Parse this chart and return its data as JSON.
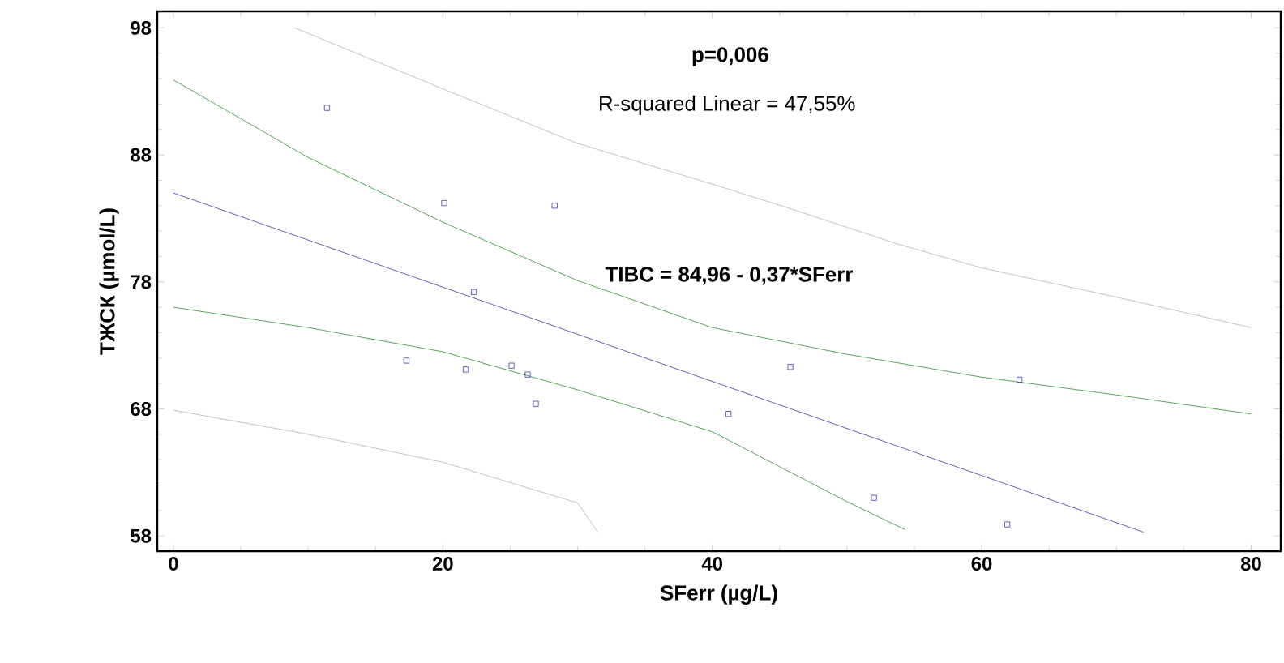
{
  "chart_data": {
    "type": "scatter",
    "xlabel": "SFerr (µg/L)",
    "ylabel": "ТЖСК (µmol/L)",
    "xlim": [
      -1.2,
      82.2
    ],
    "ylim": [
      56.8,
      99.3
    ],
    "xticks": [
      0,
      20,
      40,
      60,
      80
    ],
    "yticks": [
      58,
      68,
      78,
      88,
      98
    ],
    "annotations": [
      "p=0,006",
      "R-squared Linear = 47,55%",
      "TIBC = 84,96 - 0,37*SFerr"
    ],
    "series": [
      {
        "marker": "square",
        "color": "#3a3ab0",
        "x": [
          11.4,
          20.1,
          28.3,
          22.3,
          17.3,
          21.7,
          25.1,
          26.3,
          26.9,
          41.2,
          45.8,
          52.0,
          61.9,
          62.8
        ],
        "values": [
          91.7,
          84.2,
          84.0,
          77.2,
          71.8,
          71.1,
          71.4,
          70.7,
          68.4,
          67.6,
          71.3,
          61.0,
          58.9,
          70.3
        ]
      },
      {
        "type": "line",
        "marker": "none",
        "color": "#3a3ab0",
        "x": [
          0,
          72
        ],
        "values": [
          85.0,
          58.3
        ]
      },
      {
        "type": "line",
        "marker": "none",
        "color": "#2e8b2e",
        "x": [
          0,
          10,
          20,
          30,
          40,
          50,
          60,
          70,
          80
        ],
        "values": [
          93.9,
          87.8,
          82.7,
          78.1,
          74.4,
          72.3,
          70.5,
          69.1,
          67.6
        ]
      },
      {
        "type": "line",
        "marker": "none",
        "color": "#2e8b2e",
        "x": [
          0,
          10,
          20,
          30,
          40,
          50,
          54.3
        ],
        "values": [
          76.0,
          74.4,
          72.5,
          69.5,
          66.2,
          60.7,
          58.5
        ]
      },
      {
        "type": "line",
        "marker": "none",
        "color": "#b4b4b4",
        "x": [
          9.0,
          20,
          30,
          40,
          45.7,
          53.7,
          60,
          70,
          80
        ],
        "values": [
          98.0,
          93.2,
          88.9,
          85.7,
          83.8,
          81.0,
          79.1,
          76.8,
          74.4
        ]
      },
      {
        "type": "line",
        "marker": "none",
        "color": "#b4b4b4",
        "x": [
          0,
          10,
          20,
          30,
          31.5
        ],
        "values": [
          67.9,
          66.0,
          63.8,
          60.6,
          58.3
        ]
      }
    ]
  }
}
